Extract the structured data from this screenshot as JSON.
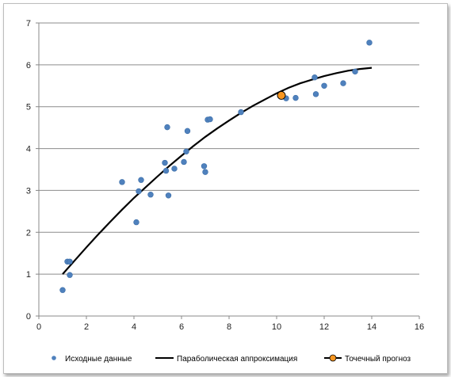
{
  "chart_data": {
    "type": "scatter",
    "xlim": [
      0,
      16
    ],
    "ylim": [
      0,
      7
    ],
    "x_ticks": [
      0,
      2,
      4,
      6,
      8,
      10,
      12,
      14,
      16
    ],
    "y_ticks": [
      0,
      1,
      2,
      3,
      4,
      5,
      6,
      7
    ],
    "grid": "horizontal",
    "legend_position": "bottom",
    "colors": {
      "points": "#4f81bd",
      "curve": "#000000",
      "forecast": "#f79620"
    },
    "series": [
      {
        "name": "Исходные данные",
        "kind": "scatter",
        "points": [
          [
            1.0,
            0.62
          ],
          [
            1.2,
            1.3
          ],
          [
            1.3,
            1.3
          ],
          [
            1.3,
            0.98
          ],
          [
            3.5,
            3.2
          ],
          [
            4.1,
            2.24
          ],
          [
            4.2,
            2.98
          ],
          [
            4.3,
            3.25
          ],
          [
            4.7,
            2.9
          ],
          [
            5.3,
            3.66
          ],
          [
            5.35,
            3.47
          ],
          [
            5.4,
            4.51
          ],
          [
            5.45,
            2.88
          ],
          [
            5.7,
            3.52
          ],
          [
            6.1,
            3.68
          ],
          [
            6.2,
            3.93
          ],
          [
            6.25,
            4.42
          ],
          [
            6.95,
            3.58
          ],
          [
            7.0,
            3.44
          ],
          [
            7.1,
            4.69
          ],
          [
            7.2,
            4.7
          ],
          [
            8.5,
            4.87
          ],
          [
            10.4,
            5.2
          ],
          [
            10.8,
            5.21
          ],
          [
            11.6,
            5.7
          ],
          [
            11.65,
            5.3
          ],
          [
            12.0,
            5.5
          ],
          [
            12.8,
            5.56
          ],
          [
            13.3,
            5.84
          ],
          [
            13.9,
            6.53
          ]
        ]
      },
      {
        "name": "Параболическая аппроксимация",
        "kind": "line",
        "x": [
          1,
          1.5,
          2,
          2.5,
          3,
          3.5,
          4,
          4.5,
          5,
          5.5,
          6,
          6.5,
          7,
          7.5,
          8,
          8.5,
          9,
          9.5,
          10,
          10.5,
          11,
          11.5,
          12,
          12.5,
          13,
          13.5,
          14
        ],
        "y": [
          1.0,
          1.32,
          1.64,
          1.95,
          2.25,
          2.54,
          2.82,
          3.08,
          3.34,
          3.59,
          3.83,
          4.06,
          4.28,
          4.48,
          4.67,
          4.85,
          5.02,
          5.17,
          5.32,
          5.45,
          5.56,
          5.65,
          5.73,
          5.8,
          5.86,
          5.9,
          5.93
        ]
      },
      {
        "name": "Точечный прогноз",
        "kind": "marker",
        "points": [
          [
            10.2,
            5.27
          ]
        ]
      }
    ]
  }
}
